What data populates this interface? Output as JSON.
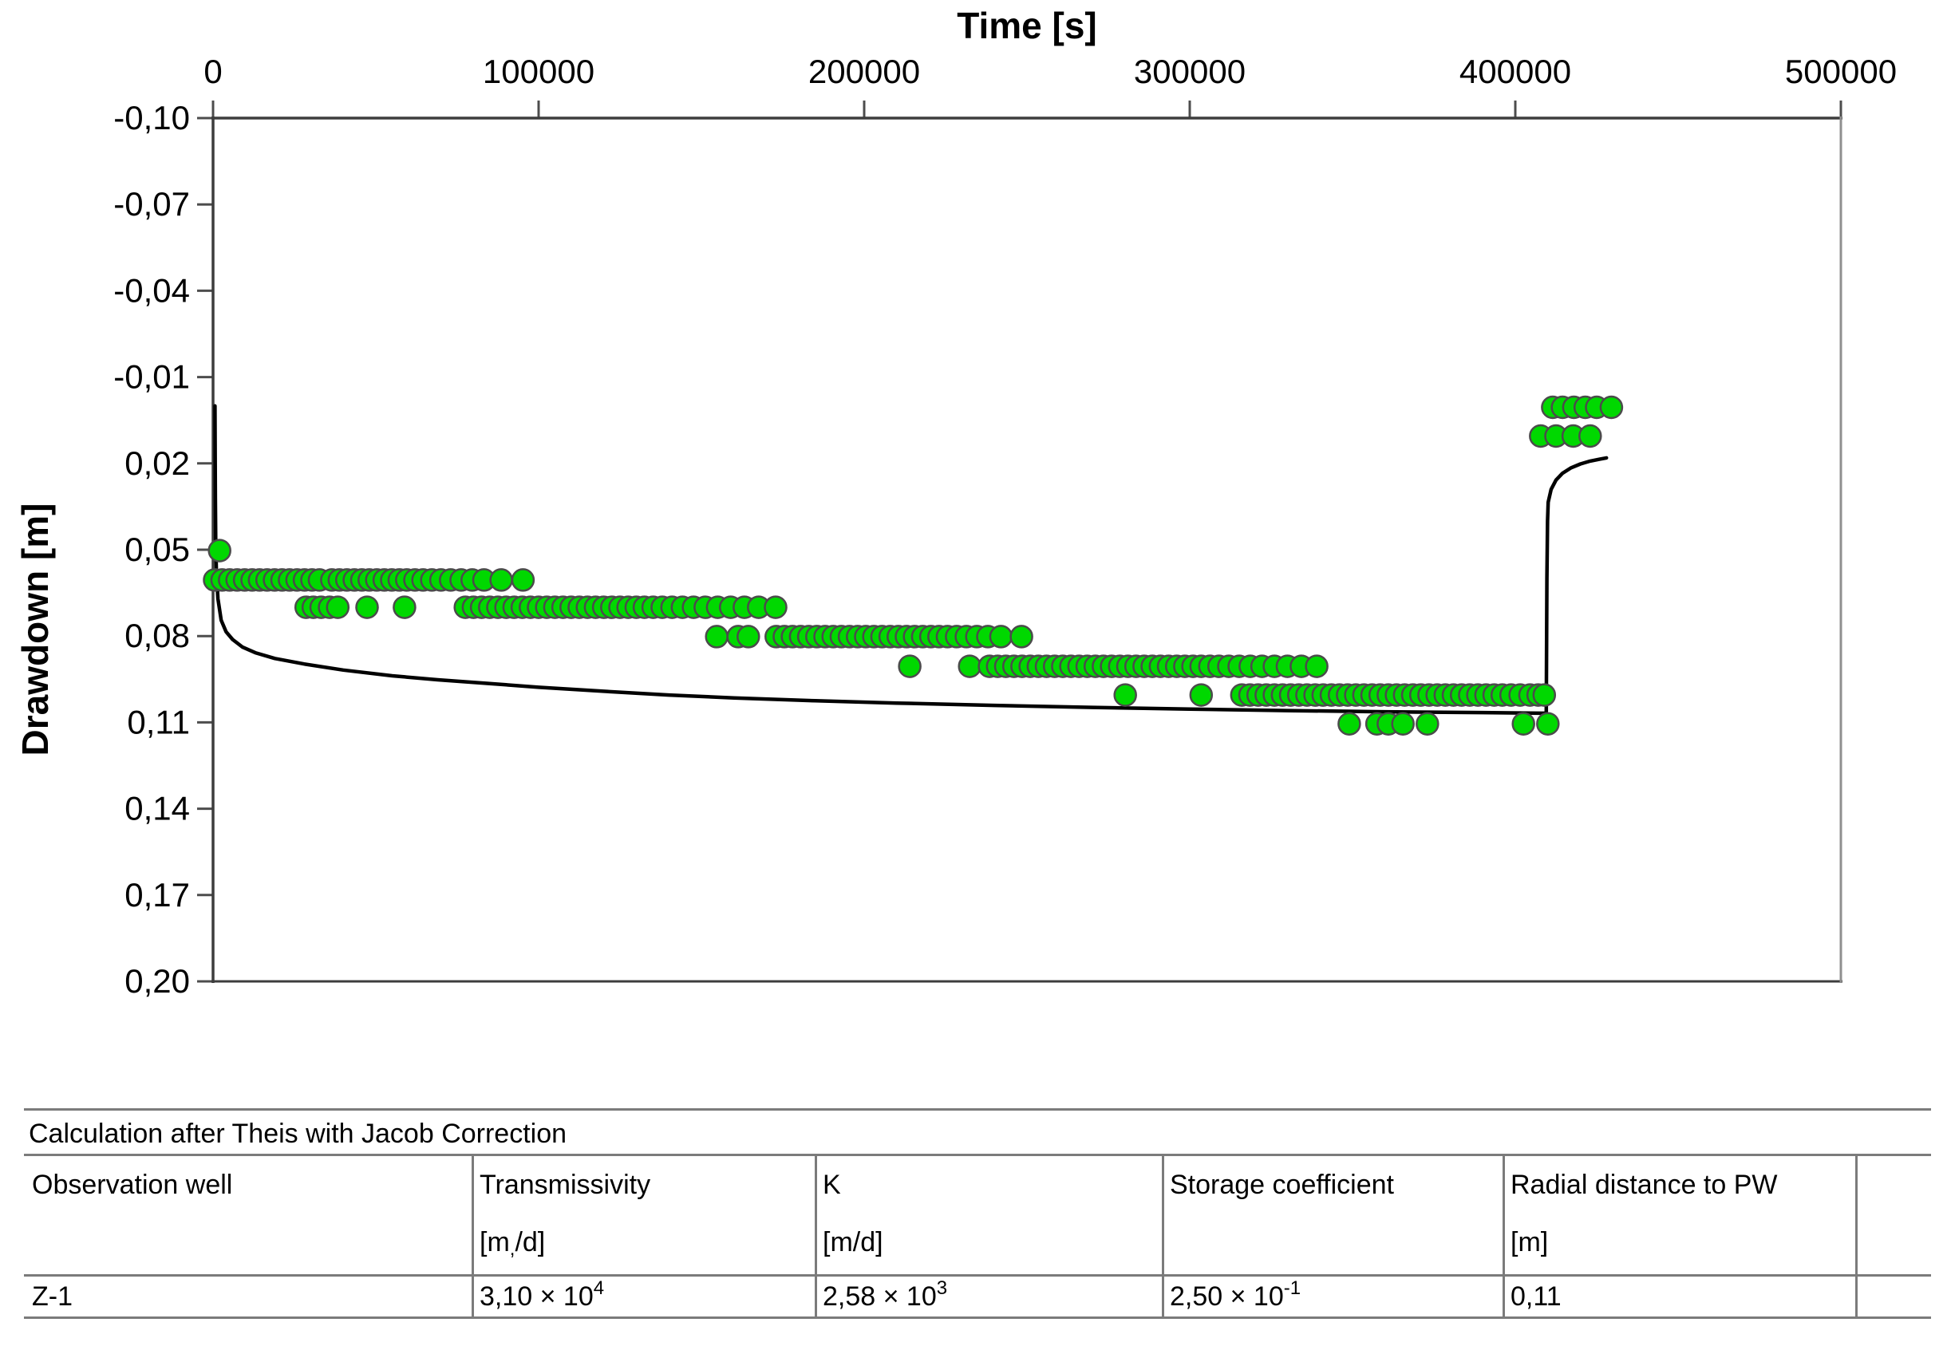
{
  "chart_data": {
    "type": "scatter",
    "title": "",
    "xlabel": "Time [s]",
    "ylabel": "Drawdown [m]",
    "xlim": [
      0,
      500000
    ],
    "ylim_top": -0.1,
    "ylim_bottom": 0.2,
    "y_axis_inverted": true,
    "grid": false,
    "x_ticks": [
      0,
      100000,
      200000,
      300000,
      400000,
      500000
    ],
    "x_tick_labels": [
      "0",
      "100000",
      "200000",
      "300000",
      "400000",
      "500000"
    ],
    "y_ticks": [
      -0.1,
      -0.07,
      -0.04,
      -0.01,
      0.02,
      0.05,
      0.08,
      0.11,
      0.14,
      0.17,
      0.2
    ],
    "y_tick_labels": [
      "-0,10",
      "-0,07",
      "-0,04",
      "-0,01",
      "0,02",
      "0,05",
      "0,08",
      "0,11",
      "0,14",
      "0,17",
      "0,20"
    ],
    "point_color": "#00d800",
    "point_outline": "#4b4b4b",
    "curve_color": "#000000",
    "series": [
      {
        "name": "observed-drawdown-points",
        "type": "scatter",
        "bands": [
          {
            "s": 0.0503,
            "t": [
              2000
            ]
          },
          {
            "s": 0.0605,
            "t": [
              500,
              2800,
              5100,
              7400,
              9700,
              12000,
              14300,
              16600,
              18900,
              21200,
              23500,
              25800,
              28100,
              30400,
              32700,
              36500,
              38800,
              41100,
              43400,
              45700,
              48000,
              50300,
              52600,
              54900,
              57200,
              59500,
              62000,
              64500,
              67200,
              70000,
              73000,
              76200,
              79600,
              83200,
              88500,
              95200
            ]
          },
          {
            "s": 0.07,
            "t": [
              28600,
              30800,
              33200,
              35800,
              38300,
              47300,
              58800,
              77500,
              80000,
              82500,
              85000,
              87500,
              90000,
              92500,
              95000,
              97500,
              100000,
              102500,
              105000,
              107500,
              110000,
              112500,
              115000,
              117500,
              120000,
              122500,
              125000,
              127500,
              130000,
              132500,
              135200,
              138000,
              141000,
              144200,
              147600,
              151200,
              155000,
              159000,
              163200,
              167600,
              172800
            ]
          },
          {
            "s": 0.0802,
            "t": [
              154700,
              161300,
              164400,
              173000,
              175500,
              178000,
              180500,
              183000,
              185500,
              188000,
              190500,
              193000,
              195500,
              198000,
              200500,
              203000,
              205500,
              208000,
              210500,
              213000,
              215500,
              218000,
              220500,
              223000,
              225600,
              228400,
              231400,
              234600,
              238000,
              242000,
              248300
            ]
          },
          {
            "s": 0.0905,
            "t": [
              214000,
              232400,
              238500,
              241000,
              243500,
              246000,
              248500,
              251000,
              253500,
              256000,
              258500,
              261000,
              263500,
              266000,
              268500,
              271000,
              273500,
              276000,
              278500,
              281000,
              283500,
              286000,
              288500,
              291000,
              293500,
              296000,
              298500,
              301000,
              303500,
              306200,
              309000,
              312000,
              315200,
              318600,
              322200,
              326000,
              330000,
              334300,
              339000
            ]
          },
          {
            "s": 0.1005,
            "t": [
              280200,
              303500,
              316000,
              318500,
              321000,
              323500,
              326000,
              328500,
              331000,
              333500,
              336000,
              338500,
              341000,
              343500,
              346000,
              348500,
              351000,
              353500,
              356000,
              358500,
              361000,
              363500,
              366000,
              368500,
              371000,
              373500,
              376000,
              378500,
              381000,
              383500,
              386000,
              388500,
              391000,
              393500,
              396000,
              398700,
              401500,
              404500,
              407000,
              408900
            ]
          },
          {
            "s": 0.1105,
            "t": [
              349000,
              357500,
              361000,
              365500,
              373000,
              402500,
              410000
            ]
          },
          {
            "s": 0.0005,
            "t": [
              411500,
              414500,
              418000,
              421500,
              425000,
              429500
            ]
          },
          {
            "s": 0.0105,
            "t": [
              407800,
              412500,
              417800,
              423000
            ]
          }
        ]
      },
      {
        "name": "fitted-curve-theis-jacob",
        "type": "line",
        "points": [
          [
            600,
            0.0
          ],
          [
            650,
            0.02
          ],
          [
            700,
            0.032
          ],
          [
            800,
            0.046
          ],
          [
            1000,
            0.057
          ],
          [
            1500,
            0.067
          ],
          [
            2500,
            0.0745
          ],
          [
            4000,
            0.0785
          ],
          [
            6000,
            0.0812
          ],
          [
            9000,
            0.0838
          ],
          [
            13000,
            0.0858
          ],
          [
            19000,
            0.0878
          ],
          [
            28000,
            0.0897
          ],
          [
            40000,
            0.0918
          ],
          [
            55000,
            0.0938
          ],
          [
            69000,
            0.0952
          ],
          [
            85000,
            0.0965
          ],
          [
            100000,
            0.0978
          ],
          [
            120000,
            0.0992
          ],
          [
            140000,
            0.1005
          ],
          [
            160000,
            0.1015
          ],
          [
            185000,
            0.1025
          ],
          [
            210000,
            0.1033
          ],
          [
            240000,
            0.1041
          ],
          [
            270000,
            0.1048
          ],
          [
            300000,
            0.1054
          ],
          [
            330000,
            0.1059
          ],
          [
            360000,
            0.1063
          ],
          [
            390000,
            0.1066
          ],
          [
            408000,
            0.1068
          ],
          [
            409500,
            0.1068
          ],
          [
            409700,
            0.06
          ],
          [
            409900,
            0.04
          ],
          [
            410100,
            0.0335
          ],
          [
            411000,
            0.029
          ],
          [
            412500,
            0.0258
          ],
          [
            414500,
            0.0234
          ],
          [
            417000,
            0.0216
          ],
          [
            420000,
            0.0202
          ],
          [
            423000,
            0.0192
          ],
          [
            426000,
            0.0185
          ],
          [
            428000,
            0.0181
          ]
        ]
      }
    ]
  },
  "table": {
    "title": "Calculation after Theis with Jacob Correction",
    "columns": [
      {
        "label": "Observation well",
        "unit_pre": "",
        "unit_sub": "",
        "unit_post": ""
      },
      {
        "label": "Transmissivity",
        "unit_pre": "[m",
        "unit_sub": ",",
        "unit_post": "/d]"
      },
      {
        "label": "K",
        "unit_pre": "[m/d]",
        "unit_sub": "",
        "unit_post": ""
      },
      {
        "label": "Storage coefficient",
        "unit_pre": "",
        "unit_sub": "",
        "unit_post": ""
      },
      {
        "label": "Radial distance to PW",
        "unit_pre": "[m]",
        "unit_sub": "",
        "unit_post": ""
      },
      {
        "label": "",
        "unit_pre": "",
        "unit_sub": "",
        "unit_post": ""
      }
    ],
    "rows": [
      {
        "well": "Z-1",
        "transmissivity_base": "3,10 × 10",
        "transmissivity_exp": "4",
        "k_base": "2,58 × 10",
        "k_exp": "3",
        "storage_base": "2,50 × 10",
        "storage_exp": "-1",
        "radial_distance": "0,11"
      }
    ]
  }
}
